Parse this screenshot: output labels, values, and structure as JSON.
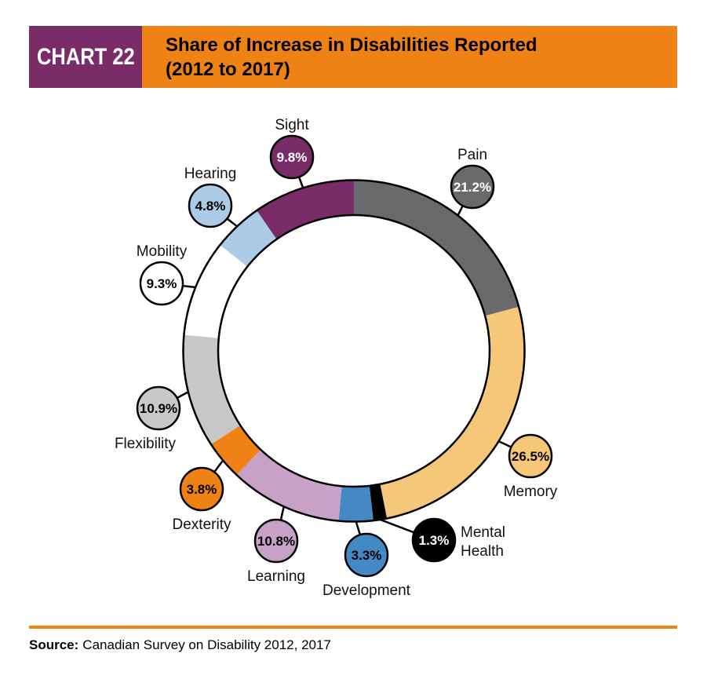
{
  "page": {
    "background": "#FFFFFF"
  },
  "header": {
    "chart_label": "CHART 22",
    "box_color": "#7A2C68",
    "banner_color": "#EF8214",
    "label_text_color": "#FFFFFF",
    "title_color": "#000000"
  },
  "chart_data": {
    "type": "pie",
    "donut": true,
    "title": "Share of Increase in Disabilities Reported (2012 to 2017)",
    "title_lines": [
      "Share of Increase in Disabilities Reported",
      "(2012 to 2017)"
    ],
    "unit": "%",
    "start_angle_deg": 0,
    "direction": "clockwise",
    "outline_color": "#000000",
    "legend_position": "callout-bubbles-around-ring",
    "segments": [
      {
        "label": "Pain",
        "value": 21.2,
        "value_label": "21.2%",
        "color": "#6A6A6C",
        "text_color": "#FFFFFF"
      },
      {
        "label": "Memory",
        "value": 26.5,
        "value_label": "26.5%",
        "color": "#F6C679",
        "text_color": "#000000"
      },
      {
        "label": "Mental Health",
        "value": 1.3,
        "value_label": "1.3%",
        "color": "#000000",
        "text_color": "#FFFFFF"
      },
      {
        "label": "Development",
        "value": 3.3,
        "value_label": "3.3%",
        "color": "#4489C4",
        "text_color": "#000000"
      },
      {
        "label": "Learning",
        "value": 10.8,
        "value_label": "10.8%",
        "color": "#C8A1C6",
        "text_color": "#000000"
      },
      {
        "label": "Dexterity",
        "value": 3.8,
        "value_label": "3.8%",
        "color": "#EF8214",
        "text_color": "#000000"
      },
      {
        "label": "Flexibility",
        "value": 10.9,
        "value_label": "10.9%",
        "color": "#C8C8CA",
        "text_color": "#000000"
      },
      {
        "label": "Mobility",
        "value": 9.3,
        "value_label": "9.3%",
        "color": "#FFFFFF",
        "text_color": "#000000"
      },
      {
        "label": "Hearing",
        "value": 4.8,
        "value_label": "4.8%",
        "color": "#ABCBE6",
        "text_color": "#000000"
      },
      {
        "label": "Sight",
        "value": 9.8,
        "value_label": "9.8%",
        "color": "#7A2C68",
        "text_color": "#FFFFFF"
      }
    ]
  },
  "footer": {
    "rule_color": "#EF8214",
    "source_label": "Source:",
    "source_text": "Canadian Survey on Disability 2012, 2017"
  }
}
